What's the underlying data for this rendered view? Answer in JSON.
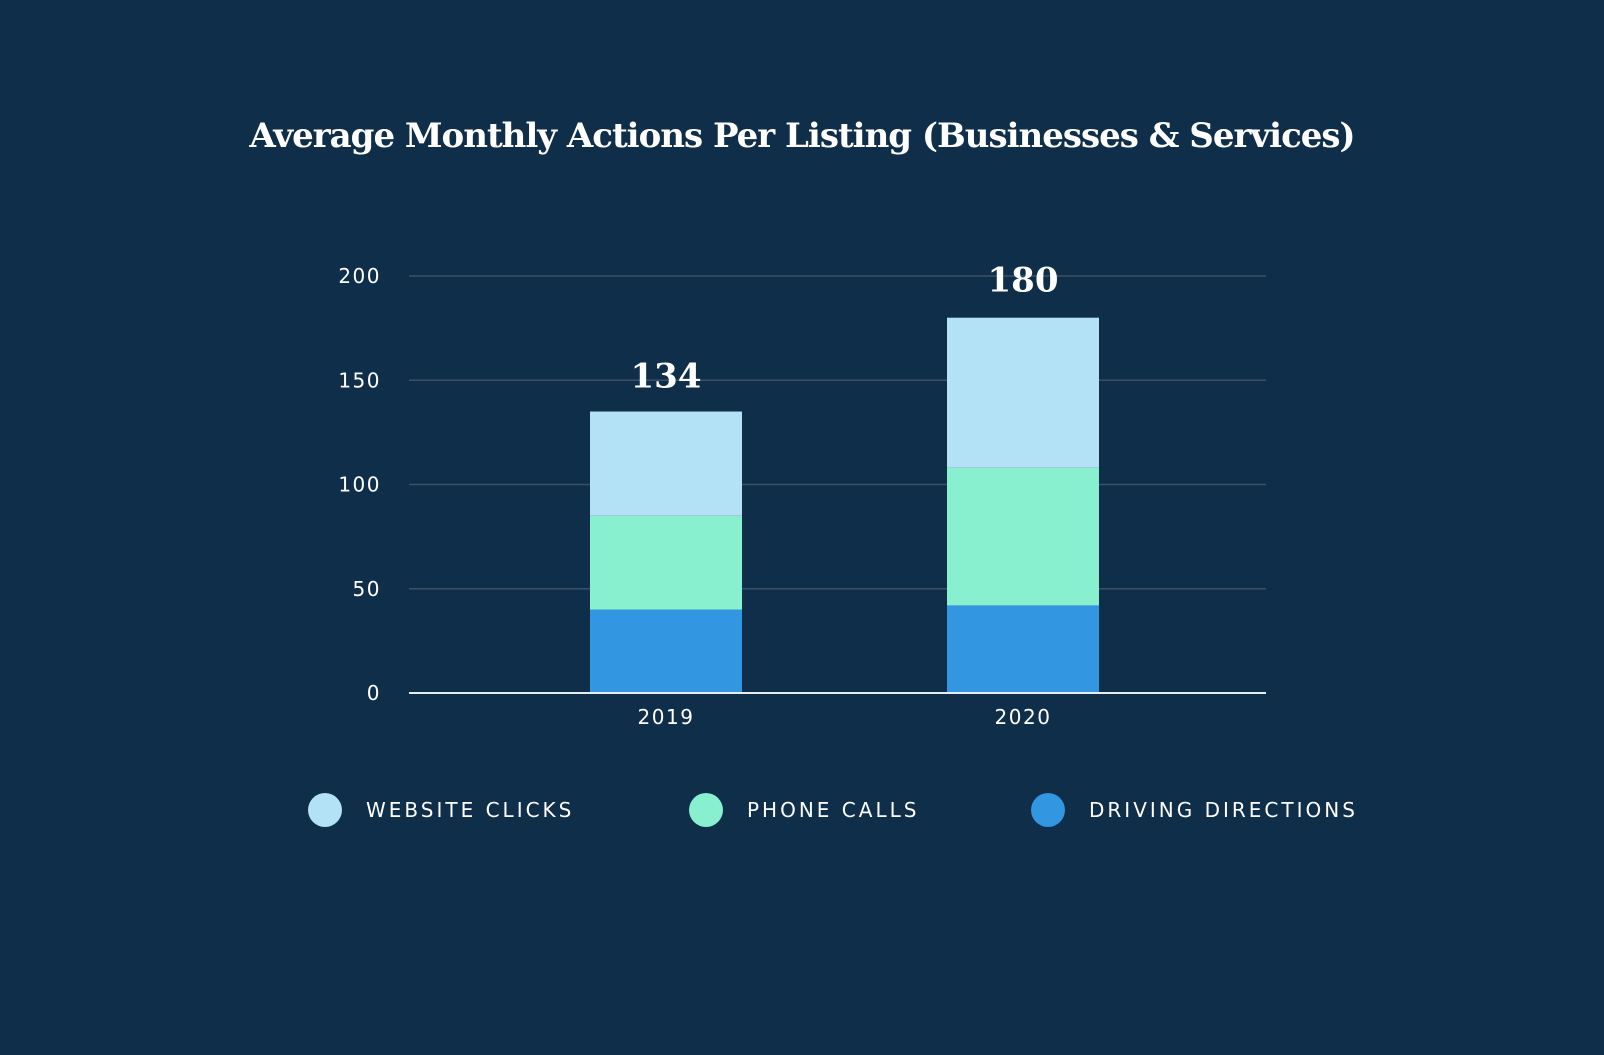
{
  "chart_data": {
    "type": "bar",
    "stacked": true,
    "title": "Average Monthly Actions Per Listing (Businesses & Services)",
    "categories": [
      "2019",
      "2020"
    ],
    "totals": [
      134,
      180
    ],
    "series": [
      {
        "name": "WEBSITE CLICKS",
        "color": "#b3e1f5",
        "values": [
          50,
          72
        ]
      },
      {
        "name": "PHONE CALLS",
        "color": "#88efcf",
        "values": [
          45,
          66
        ]
      },
      {
        "name": "DRIVING DIRECTIONS",
        "color": "#3296e0",
        "values": [
          40,
          42
        ]
      }
    ],
    "stack_order": [
      "DRIVING DIRECTIONS",
      "PHONE CALLS",
      "WEBSITE CLICKS"
    ],
    "yticks": [
      0,
      50,
      100,
      150,
      200
    ],
    "ylim": [
      0,
      200
    ],
    "grid": true,
    "legend_position": "bottom"
  }
}
